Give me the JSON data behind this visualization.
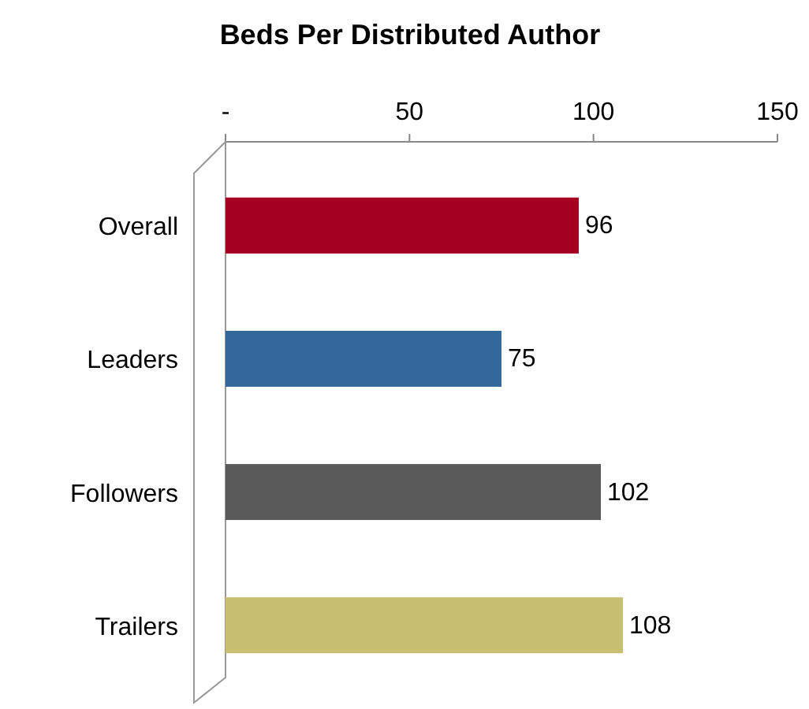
{
  "chart_data": {
    "type": "bar",
    "orientation": "horizontal",
    "title": "Beds Per Distributed Author",
    "categories": [
      "Overall",
      "Leaders",
      "Followers",
      "Trailers"
    ],
    "values": [
      96,
      75,
      102,
      108
    ],
    "colors": [
      "#a50021",
      "#336699",
      "#595959",
      "#c8c070"
    ],
    "xlim": [
      0,
      150
    ],
    "xticks": [
      {
        "value": 0,
        "label": "-"
      },
      50,
      100,
      150
    ],
    "data_labels": true,
    "grid": false
  }
}
